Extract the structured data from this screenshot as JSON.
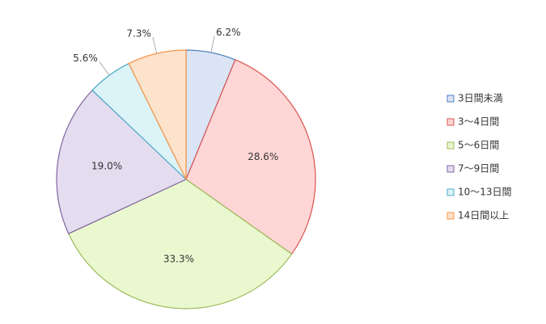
{
  "chart_data": {
    "type": "pie",
    "categories": [
      "3日間未満",
      "3～4日間",
      "5～6日間",
      "7～9日間",
      "10～13日間",
      "14日間以上"
    ],
    "values": [
      6.2,
      28.6,
      33.3,
      19.0,
      5.6,
      7.3
    ],
    "value_labels": [
      "6.2%",
      "28.6%",
      "33.3%",
      "19.0%",
      "5.6%",
      "7.3%"
    ],
    "colors": [
      "#dae4f4",
      "#ffd6d6",
      "#eaf8d0",
      "#e4ddf0",
      "#dcf3f8",
      "#fde2cc"
    ],
    "border_colors": [
      "#4f81bd",
      "#d9534f",
      "#9bbb59",
      "#8064a2",
      "#4bacc6",
      "#f79646"
    ],
    "legend": "right"
  }
}
